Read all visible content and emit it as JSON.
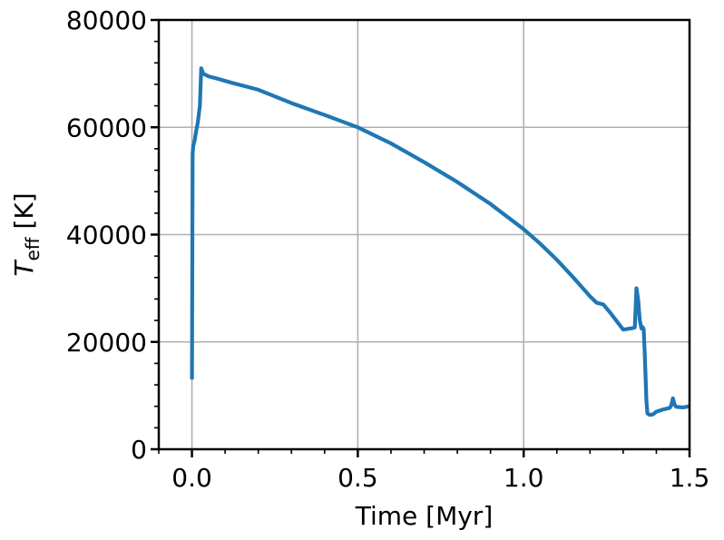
{
  "chart_data": {
    "type": "line",
    "title": "",
    "xlabel": "Time [Myr]",
    "ylabel_main": "T",
    "ylabel_sub": "eff",
    "ylabel_unit": " [K]",
    "xlim": [
      -0.1,
      1.5
    ],
    "ylim": [
      0,
      80000
    ],
    "xticks": [
      0.0,
      0.5,
      1.0,
      1.5
    ],
    "xtick_labels": [
      "0.0",
      "0.5",
      "1.0",
      "1.5"
    ],
    "yticks": [
      0,
      20000,
      40000,
      60000,
      80000
    ],
    "ytick_labels": [
      "0",
      "20000",
      "40000",
      "60000",
      "80000"
    ],
    "grid": true,
    "series": [
      {
        "color": "#1f77b4",
        "x": [
          0.0,
          0.002,
          0.004,
          0.008,
          0.012,
          0.018,
          0.024,
          0.028,
          0.031,
          0.034,
          0.04,
          0.05,
          0.08,
          0.12,
          0.2,
          0.3,
          0.4,
          0.5,
          0.6,
          0.7,
          0.8,
          0.9,
          1.0,
          1.05,
          1.1,
          1.15,
          1.2,
          1.22,
          1.24,
          1.26,
          1.3,
          1.33,
          1.335,
          1.34,
          1.345,
          1.35,
          1.355,
          1.358,
          1.362,
          1.365,
          1.37,
          1.373,
          1.38,
          1.39,
          1.4,
          1.42,
          1.44,
          1.445,
          1.45,
          1.455,
          1.46,
          1.48,
          1.5
        ],
        "y": [
          13000,
          55000,
          56500,
          57500,
          59000,
          61000,
          64000,
          71000,
          70500,
          70000,
          69800,
          69500,
          69000,
          68300,
          67000,
          64500,
          62300,
          60000,
          57000,
          53500,
          49800,
          45700,
          41000,
          38300,
          35300,
          32000,
          28500,
          27300,
          27000,
          25500,
          22300,
          22600,
          22700,
          30000,
          28000,
          24000,
          22500,
          22800,
          22400,
          18000,
          9000,
          6700,
          6400,
          6500,
          7000,
          7400,
          7700,
          8200,
          9500,
          8300,
          7900,
          7800,
          8000
        ]
      }
    ]
  }
}
